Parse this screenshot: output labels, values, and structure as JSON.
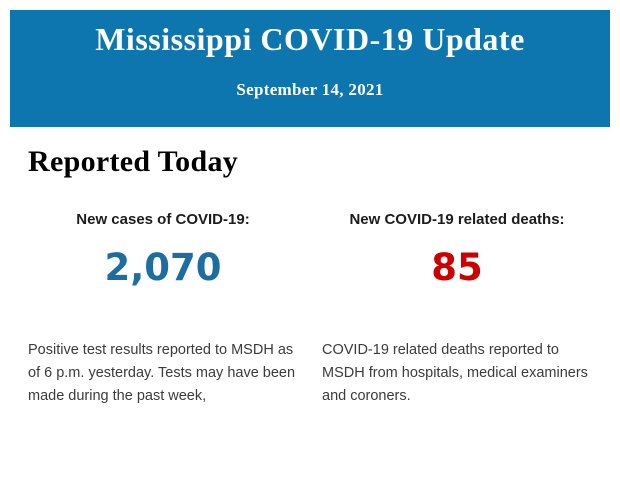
{
  "banner": {
    "title": "Mississippi COVID-19 Update",
    "date": "September 14, 2021",
    "bg_color": "#0e76af",
    "text_color": "#ffffff"
  },
  "section": {
    "heading": "Reported Today"
  },
  "stats": [
    {
      "label": "New cases of COVID-19:",
      "value": "2,070",
      "value_color": "#1d6da1",
      "description": "Positive test results reported to MSDH as of 6 p.m. yesterday. Tests may have been made during the past week,"
    },
    {
      "label": "New COVID-19 related deaths:",
      "value": "85",
      "value_color": "#cc0000",
      "description": "COVID-19 related deaths reported to MSDH from hospitals, medical examiners and coroners."
    }
  ]
}
